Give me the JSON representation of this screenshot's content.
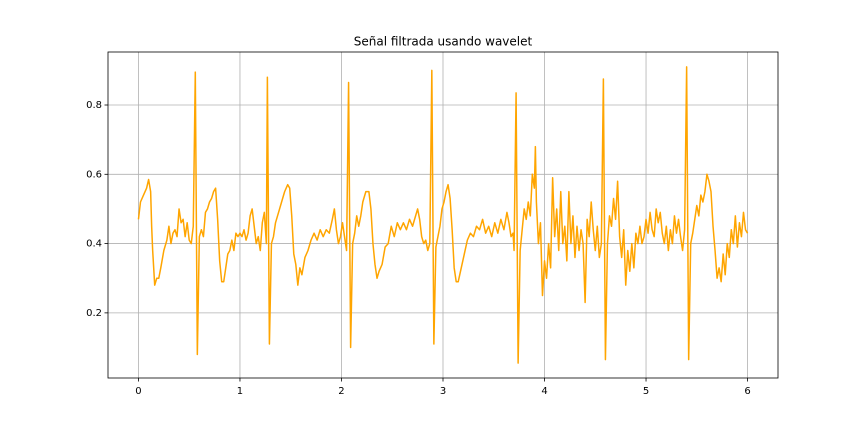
{
  "chart_data": {
    "type": "line",
    "title": "Señal filtrada usando wavelet",
    "xlim": [
      -0.3,
      6.3
    ],
    "ylim": [
      0.012,
      0.953
    ],
    "xticks": [
      0,
      1,
      2,
      3,
      4,
      5,
      6
    ],
    "yticks": [
      0.2,
      0.4,
      0.6,
      0.8
    ],
    "grid": true,
    "series": [
      {
        "color": "#ffa500",
        "x": [
          0,
          0.02,
          0.05,
          0.08,
          0.1,
          0.12,
          0.13,
          0.14,
          0.16,
          0.18,
          0.2,
          0.22,
          0.25,
          0.28,
          0.3,
          0.32,
          0.34,
          0.36,
          0.38,
          0.4,
          0.42,
          0.44,
          0.46,
          0.48,
          0.5,
          0.52,
          0.54,
          0.56,
          0.58,
          0.6,
          0.62,
          0.64,
          0.66,
          0.68,
          0.7,
          0.72,
          0.74,
          0.76,
          0.78,
          0.8,
          0.82,
          0.84,
          0.86,
          0.88,
          0.9,
          0.92,
          0.94,
          0.96,
          0.98,
          1.0,
          1.02,
          1.04,
          1.06,
          1.08,
          1.1,
          1.12,
          1.14,
          1.16,
          1.18,
          1.2,
          1.22,
          1.24,
          1.26,
          1.27,
          1.29,
          1.31,
          1.33,
          1.35,
          1.38,
          1.41,
          1.44,
          1.47,
          1.49,
          1.51,
          1.53,
          1.55,
          1.57,
          1.59,
          1.61,
          1.64,
          1.67,
          1.7,
          1.73,
          1.76,
          1.79,
          1.82,
          1.85,
          1.88,
          1.91,
          1.93,
          1.95,
          1.97,
          1.99,
          2.01,
          2.03,
          2.05,
          2.07,
          2.09,
          2.11,
          2.13,
          2.15,
          2.17,
          2.19,
          2.21,
          2.24,
          2.27,
          2.29,
          2.31,
          2.33,
          2.35,
          2.37,
          2.4,
          2.43,
          2.46,
          2.49,
          2.52,
          2.55,
          2.58,
          2.61,
          2.64,
          2.67,
          2.7,
          2.73,
          2.75,
          2.77,
          2.79,
          2.81,
          2.83,
          2.85,
          2.87,
          2.89,
          2.91,
          2.93,
          2.95,
          2.97,
          2.99,
          3.01,
          3.03,
          3.05,
          3.07,
          3.09,
          3.11,
          3.13,
          3.15,
          3.18,
          3.21,
          3.24,
          3.27,
          3.3,
          3.33,
          3.36,
          3.39,
          3.42,
          3.45,
          3.48,
          3.51,
          3.54,
          3.57,
          3.6,
          3.63,
          3.65,
          3.67,
          3.69,
          3.7,
          3.72,
          3.74,
          3.76,
          3.78,
          3.8,
          3.82,
          3.84,
          3.86,
          3.88,
          3.9,
          3.91,
          3.92,
          3.94,
          3.96,
          3.98,
          4.0,
          4.02,
          4.04,
          4.06,
          4.08,
          4.1,
          4.12,
          4.14,
          4.16,
          4.18,
          4.2,
          4.22,
          4.24,
          4.26,
          4.28,
          4.3,
          4.32,
          4.34,
          4.36,
          4.38,
          4.4,
          4.42,
          4.44,
          4.46,
          4.48,
          4.5,
          4.52,
          4.54,
          4.56,
          4.58,
          4.6,
          4.62,
          4.64,
          4.66,
          4.68,
          4.7,
          4.72,
          4.74,
          4.76,
          4.78,
          4.8,
          4.82,
          4.84,
          4.86,
          4.88,
          4.9,
          4.92,
          4.94,
          4.96,
          4.98,
          5.0,
          5.02,
          5.04,
          5.06,
          5.08,
          5.1,
          5.12,
          5.14,
          5.16,
          5.18,
          5.2,
          5.22,
          5.24,
          5.26,
          5.28,
          5.3,
          5.32,
          5.34,
          5.36,
          5.38,
          5.4,
          5.42,
          5.44,
          5.46,
          5.48,
          5.5,
          5.52,
          5.54,
          5.56,
          5.58,
          5.6,
          5.62,
          5.64,
          5.66,
          5.68,
          5.7,
          5.72,
          5.74,
          5.76,
          5.78,
          5.8,
          5.82,
          5.84,
          5.86,
          5.88,
          5.9,
          5.92,
          5.94,
          5.96,
          5.98,
          6.0
        ],
        "values": [
          0.47,
          0.52,
          0.54,
          0.56,
          0.585,
          0.55,
          0.45,
          0.38,
          0.28,
          0.3,
          0.3,
          0.33,
          0.38,
          0.41,
          0.45,
          0.4,
          0.43,
          0.44,
          0.42,
          0.5,
          0.46,
          0.47,
          0.42,
          0.46,
          0.41,
          0.4,
          0.45,
          0.895,
          0.08,
          0.42,
          0.44,
          0.42,
          0.49,
          0.5,
          0.52,
          0.53,
          0.55,
          0.56,
          0.47,
          0.35,
          0.29,
          0.29,
          0.33,
          0.37,
          0.38,
          0.41,
          0.38,
          0.43,
          0.42,
          0.43,
          0.42,
          0.44,
          0.41,
          0.43,
          0.48,
          0.5,
          0.45,
          0.4,
          0.42,
          0.38,
          0.46,
          0.49,
          0.4,
          0.88,
          0.11,
          0.4,
          0.42,
          0.46,
          0.49,
          0.52,
          0.55,
          0.57,
          0.56,
          0.48,
          0.37,
          0.34,
          0.28,
          0.33,
          0.31,
          0.36,
          0.38,
          0.41,
          0.43,
          0.41,
          0.44,
          0.42,
          0.44,
          0.43,
          0.47,
          0.5,
          0.44,
          0.4,
          0.42,
          0.46,
          0.42,
          0.38,
          0.865,
          0.1,
          0.4,
          0.43,
          0.48,
          0.45,
          0.48,
          0.52,
          0.55,
          0.55,
          0.5,
          0.4,
          0.34,
          0.3,
          0.32,
          0.34,
          0.39,
          0.4,
          0.45,
          0.42,
          0.46,
          0.44,
          0.46,
          0.44,
          0.47,
          0.45,
          0.48,
          0.5,
          0.47,
          0.42,
          0.4,
          0.41,
          0.38,
          0.4,
          0.9,
          0.11,
          0.39,
          0.42,
          0.45,
          0.5,
          0.52,
          0.55,
          0.57,
          0.53,
          0.44,
          0.33,
          0.29,
          0.29,
          0.33,
          0.37,
          0.41,
          0.43,
          0.42,
          0.45,
          0.44,
          0.47,
          0.43,
          0.45,
          0.42,
          0.46,
          0.43,
          0.47,
          0.44,
          0.49,
          0.46,
          0.42,
          0.43,
          0.38,
          0.835,
          0.055,
          0.38,
          0.44,
          0.5,
          0.47,
          0.52,
          0.48,
          0.6,
          0.56,
          0.68,
          0.52,
          0.4,
          0.46,
          0.25,
          0.35,
          0.3,
          0.4,
          0.33,
          0.59,
          0.42,
          0.5,
          0.38,
          0.55,
          0.4,
          0.45,
          0.35,
          0.55,
          0.4,
          0.48,
          0.36,
          0.45,
          0.38,
          0.44,
          0.4,
          0.23,
          0.47,
          0.42,
          0.52,
          0.44,
          0.38,
          0.45,
          0.36,
          0.4,
          0.875,
          0.065,
          0.4,
          0.48,
          0.45,
          0.53,
          0.47,
          0.58,
          0.42,
          0.36,
          0.44,
          0.28,
          0.38,
          0.32,
          0.4,
          0.33,
          0.43,
          0.4,
          0.45,
          0.4,
          0.42,
          0.47,
          0.43,
          0.49,
          0.44,
          0.42,
          0.5,
          0.46,
          0.49,
          0.43,
          0.4,
          0.45,
          0.38,
          0.44,
          0.4,
          0.48,
          0.43,
          0.47,
          0.42,
          0.38,
          0.44,
          0.91,
          0.065,
          0.4,
          0.43,
          0.47,
          0.51,
          0.48,
          0.54,
          0.52,
          0.55,
          0.6,
          0.58,
          0.55,
          0.45,
          0.38,
          0.3,
          0.33,
          0.29,
          0.37,
          0.31,
          0.4,
          0.36,
          0.44,
          0.4,
          0.48,
          0.39,
          0.46,
          0.42,
          0.49,
          0.44,
          0.43
        ]
      }
    ]
  }
}
